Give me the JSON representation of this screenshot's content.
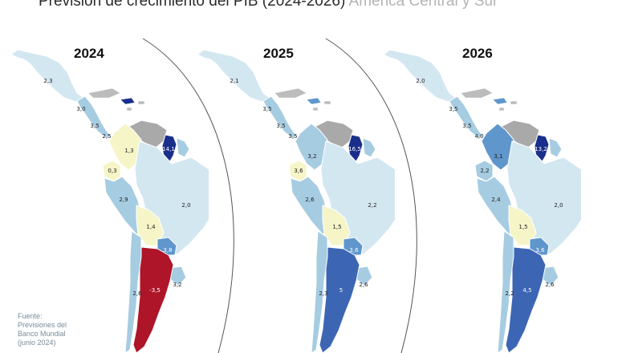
{
  "title": {
    "main": "Previsión de crecimiento del PIB (2024-2026)",
    "region": "América Central y Sur"
  },
  "source": "Fuente:\nPrevisiones del\nBanco Mundial\n(junio 2024)",
  "colors": {
    "land_light": "#d3e7f1",
    "land_mid": "#a6cce2",
    "land_steel": "#5f96cc",
    "land_blue": "#3c66b4",
    "land_navy": "#1a2f8c",
    "neutral_yellow": "#f5f5c8",
    "no_data": "#a9a9a9",
    "negative_red": "#ae1528",
    "island_gray": "#bcbcbc"
  },
  "maps": [
    {
      "year": "2024",
      "labels": [
        {
          "country": "Mexico",
          "value": "2,3"
        },
        {
          "country": "Guatemala",
          "value": "3,0"
        },
        {
          "country": "Nicaragua",
          "value": "3,5"
        },
        {
          "country": "Panama",
          "value": "2,5"
        },
        {
          "country": "Venezuela",
          "value": "1,3"
        },
        {
          "country": "Guyana",
          "value": "14,1"
        },
        {
          "country": "Ecuador",
          "value": "0,3"
        },
        {
          "country": "Peru",
          "value": "2,9"
        },
        {
          "country": "Brazil",
          "value": "2,0"
        },
        {
          "country": "Bolivia",
          "value": "1,4"
        },
        {
          "country": "Paraguay",
          "value": "3,8"
        },
        {
          "country": "Argentina",
          "value": "-3,5"
        },
        {
          "country": "Uruguay",
          "value": "3,2"
        },
        {
          "country": "Chile",
          "value": "2,6"
        }
      ],
      "fills": {
        "mexico": "land_light",
        "central": "land_mid",
        "caribbean": "land_navy",
        "venezuela": "no_data",
        "colombia": "neutral_yellow",
        "guyana": "land_navy",
        "ecuador": "neutral_yellow",
        "peru": "land_mid",
        "brazil": "land_light",
        "bolivia": "neutral_yellow",
        "paraguay": "land_steel",
        "argentina": "negative_red",
        "uruguay": "land_mid",
        "chile": "land_mid"
      }
    },
    {
      "year": "2025",
      "labels": [
        {
          "country": "Mexico",
          "value": "2,1"
        },
        {
          "country": "Guatemala",
          "value": "3,5"
        },
        {
          "country": "Nicaragua",
          "value": "3,5"
        },
        {
          "country": "Panama",
          "value": "3,5"
        },
        {
          "country": "Colombia",
          "value": "3,2"
        },
        {
          "country": "Guyana",
          "value": "16,5"
        },
        {
          "country": "Ecuador",
          "value": "3,6"
        },
        {
          "country": "Peru",
          "value": "2,6"
        },
        {
          "country": "Brazil",
          "value": "2,2"
        },
        {
          "country": "Bolivia",
          "value": "1,5"
        },
        {
          "country": "Paraguay",
          "value": "3,6"
        },
        {
          "country": "Uruguay",
          "value": "2,6"
        },
        {
          "country": "Argentina",
          "value": "5"
        },
        {
          "country": "Chile",
          "value": "2,3"
        }
      ],
      "fills": {
        "mexico": "land_light",
        "central": "land_mid",
        "caribbean": "land_steel",
        "venezuela": "no_data",
        "colombia": "land_mid",
        "guyana": "land_navy",
        "ecuador": "neutral_yellow",
        "peru": "land_mid",
        "brazil": "land_light",
        "bolivia": "neutral_yellow",
        "paraguay": "land_steel",
        "argentina": "land_blue",
        "uruguay": "land_mid",
        "chile": "land_mid"
      }
    },
    {
      "year": "2026",
      "labels": [
        {
          "country": "Mexico",
          "value": "2,0"
        },
        {
          "country": "Guatemala",
          "value": "3,5"
        },
        {
          "country": "Nicaragua",
          "value": "3,5"
        },
        {
          "country": "Panama",
          "value": "4,0"
        },
        {
          "country": "Colombia",
          "value": "3,1"
        },
        {
          "country": "Guyana",
          "value": "13,2"
        },
        {
          "country": "Ecuador",
          "value": "2,2"
        },
        {
          "country": "Peru",
          "value": "2,4"
        },
        {
          "country": "Brazil",
          "value": "2,0"
        },
        {
          "country": "Bolivia",
          "value": "1,5"
        },
        {
          "country": "Paraguay",
          "value": "3,6"
        },
        {
          "country": "Uruguay",
          "value": "2,6"
        },
        {
          "country": "Argentina",
          "value": "4,5"
        },
        {
          "country": "Chile",
          "value": "2,2"
        }
      ],
      "fills": {
        "mexico": "land_light",
        "central": "land_mid",
        "caribbean": "land_steel",
        "venezuela": "no_data",
        "colombia": "land_steel",
        "guyana": "land_navy",
        "ecuador": "land_mid",
        "peru": "land_mid",
        "brazil": "land_light",
        "bolivia": "neutral_yellow",
        "paraguay": "land_steel",
        "argentina": "land_blue",
        "uruguay": "land_mid",
        "chile": "land_mid"
      }
    }
  ]
}
